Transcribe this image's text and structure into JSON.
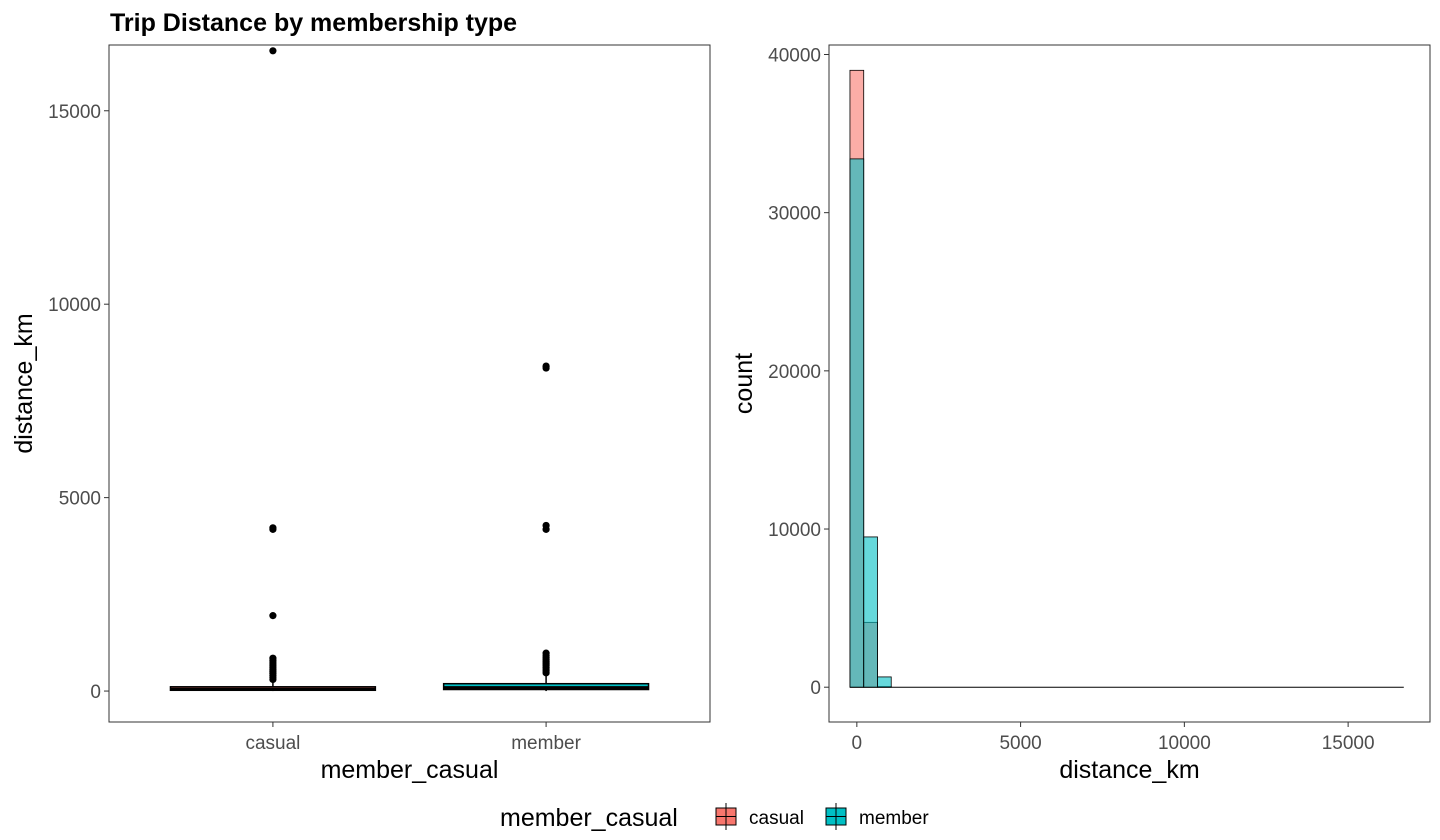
{
  "title": "Trip Distance by membership type",
  "colors": {
    "casual": "#F8766D",
    "member": "#00BFC4",
    "outline": "#000000",
    "panel_border": "#333333",
    "tick": "#4d4d4d"
  },
  "legend": {
    "title": "member_casual",
    "items": [
      {
        "key": "casual",
        "label": "casual",
        "color": "#F8766D"
      },
      {
        "key": "member",
        "label": "member",
        "color": "#00BFC4"
      }
    ]
  },
  "chart_data": [
    {
      "type": "box",
      "xlabel": "member_casual",
      "ylabel": "distance_km",
      "categories": [
        "casual",
        "member"
      ],
      "ylim": [
        -800,
        16700
      ],
      "yticks": [
        0,
        5000,
        10000,
        15000
      ],
      "boxes": [
        {
          "category": "casual",
          "q1": 20,
          "median": 45,
          "q3": 110,
          "whisker_low": 0,
          "whisker_high": 260,
          "outliers": [
            300,
            350,
            400,
            450,
            500,
            550,
            600,
            650,
            700,
            750,
            800,
            850,
            1950,
            4180,
            4220,
            16550
          ]
        },
        {
          "category": "member",
          "q1": 40,
          "median": 90,
          "q3": 190,
          "whisker_low": 0,
          "whisker_high": 420,
          "outliers": [
            470,
            520,
            570,
            620,
            670,
            720,
            770,
            820,
            870,
            920,
            980,
            4180,
            4280,
            8350,
            8400
          ]
        }
      ]
    },
    {
      "type": "histogram",
      "xlabel": "distance_km",
      "ylabel": "count",
      "xlim": [
        -850,
        17500
      ],
      "ylim": [
        -2200,
        40600
      ],
      "xticks": [
        0,
        5000,
        10000,
        15000
      ],
      "yticks": [
        0,
        10000,
        20000,
        30000,
        40000
      ],
      "bin_width": 420,
      "x_max": 16700,
      "series": [
        {
          "name": "casual",
          "bins": [
            {
              "x0": -210,
              "x1": 210,
              "count": 39000
            },
            {
              "x0": 210,
              "x1": 630,
              "count": 4100
            },
            {
              "x0": 630,
              "x1": 1050,
              "count": 40
            }
          ]
        },
        {
          "name": "member",
          "bins": [
            {
              "x0": -210,
              "x1": 210,
              "count": 33400
            },
            {
              "x0": 210,
              "x1": 630,
              "count": 9500
            },
            {
              "x0": 630,
              "x1": 1050,
              "count": 650
            }
          ]
        }
      ]
    }
  ]
}
